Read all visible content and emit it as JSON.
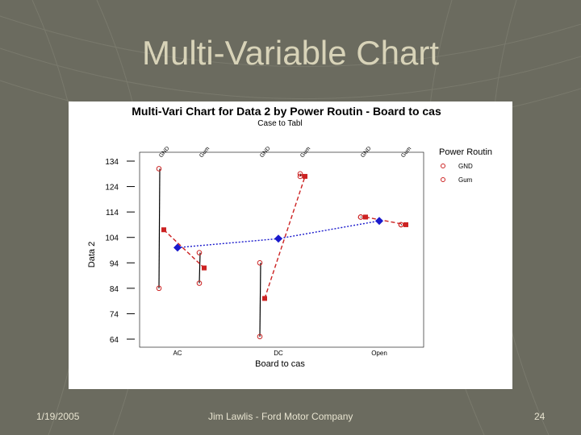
{
  "slide": {
    "title": "Multi-Variable Chart",
    "footer_date": "1/19/2005",
    "footer_center": "Jim Lawlis - Ford Motor Company",
    "footer_page": "24",
    "colors": {
      "background": "#6b6b5f",
      "title": "#d8d3b8",
      "footer": "#e8e4d0"
    }
  },
  "chart_data": {
    "type": "line",
    "title": "Multi-Vari Chart for Data 2 by Power Routin - Board to cas",
    "subtitle": "Case to Tabl",
    "xlabel": "Board to cas",
    "ylabel": "Data 2",
    "ylim": [
      64,
      134
    ],
    "yticks": [
      134,
      124,
      114,
      104,
      94,
      84,
      74,
      64
    ],
    "categories": [
      "AC",
      "DC",
      "Open"
    ],
    "subgroups": [
      "GND",
      "Gum"
    ],
    "legend": {
      "title": "Power Routin",
      "entries": [
        "GND",
        "Gum"
      ],
      "placement": "right"
    },
    "series": [
      {
        "name": "GND",
        "color": "#cc2222",
        "individual": [
          [
            84,
            131
          ],
          [
            65,
            94
          ],
          [
            112,
            112
          ]
        ],
        "means": [
          107,
          80,
          112
        ]
      },
      {
        "name": "Gum",
        "color": "#cc2222",
        "individual": [
          [
            86,
            98
          ],
          [
            128,
            129
          ],
          [
            109,
            109
          ]
        ],
        "means": [
          92,
          128,
          109
        ]
      }
    ],
    "overall_means": {
      "color": "#1a1acc",
      "values": [
        100,
        103.5,
        110.5
      ]
    }
  }
}
